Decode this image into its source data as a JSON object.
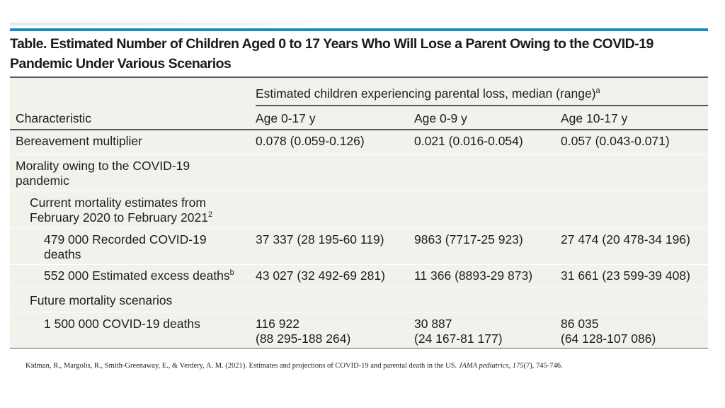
{
  "table": {
    "title": "Table. Estimated Number of Children Aged 0 to 17 Years Who Will Lose a Parent Owing to the COVID-19 Pandemic Under Various Scenarios",
    "spanning_header": "Estimated children experiencing parental loss, median (range)",
    "spanning_header_sup": "a",
    "columns": [
      "Characteristic",
      "Age 0-17 y",
      "Age 0-9 y",
      "Age 10-17 y"
    ],
    "rows": {
      "bereavement": {
        "label": "Bereavement multiplier",
        "age_0_17": "0.078 (0.059-0.126)",
        "age_0_9": "0.021 (0.016-0.054)",
        "age_10_17": "0.057 (0.043-0.071)"
      },
      "mortality_section": {
        "label_line1": "Morality owing to the COVID-19",
        "label_line2": "pandemic"
      },
      "current_section": {
        "label_line1": "Current mortality estimates from",
        "label_line2": "February 2020 to February 2021",
        "label_sup": "2"
      },
      "recorded": {
        "label_line1": "479 000 Recorded COVID-19",
        "label_line2": "deaths",
        "age_0_17": "37 337 (28 195-60 119)",
        "age_0_9": "9863 (7717-25 923)",
        "age_10_17": "27 474 (20 478-34 196)"
      },
      "excess": {
        "label": "552 000 Estimated excess deaths",
        "label_sup": "b",
        "age_0_17": "43 027 (32 492-69 281)",
        "age_0_9": "11 366 (8893-29 873)",
        "age_10_17": "31 661 (23 599-39 408)"
      },
      "future_section": {
        "label": "Future mortality scenarios"
      },
      "future_1500k": {
        "label": "1 500 000 COVID-19 deaths",
        "age_0_17_line1": "116 922",
        "age_0_17_line2": "(88 295-188 264)",
        "age_0_9_line1": "30 887",
        "age_0_9_line2": "(24 167-81 177)",
        "age_10_17_line1": "86 035",
        "age_10_17_line2": "(64 128-107 086)"
      }
    }
  },
  "citation": {
    "authors": "Kidman, R., Margolis, R., Smith-Greenaway, E., & Verdery, A. M. (2021). Estimates and projections of COVID-19 and parental death in the US.",
    "journal": "JAMA pediatrics",
    "volume": "175",
    "issue_pages": "(7), 745-746."
  }
}
